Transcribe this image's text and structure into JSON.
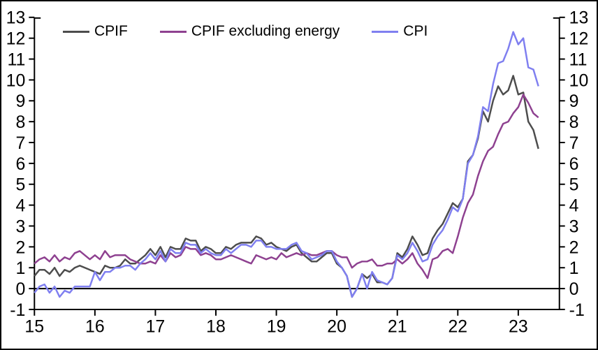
{
  "colors": {
    "background": "#ffffff",
    "axis": "#000000",
    "text": "#000000"
  },
  "chart_data": {
    "type": "line",
    "title": "",
    "xlabel": "",
    "ylabel": "",
    "frequency": "monthly",
    "start_period": "Jan 2015",
    "end_period": "May 2023",
    "xlim": [
      2015,
      2023.68
    ],
    "ylim": [
      -1,
      13
    ],
    "grid": false,
    "zero_line": true,
    "legend_position": "top",
    "ytick_labels": [
      "-1",
      "0",
      "1",
      "2",
      "3",
      "4",
      "5",
      "6",
      "7",
      "8",
      "9",
      "10",
      "11",
      "12",
      "13"
    ],
    "xticks": [
      {
        "value": 2015,
        "label": "15"
      },
      {
        "value": 2016,
        "label": "16"
      },
      {
        "value": 2017,
        "label": "17"
      },
      {
        "value": 2018,
        "label": "18"
      },
      {
        "value": 2019,
        "label": "19"
      },
      {
        "value": 2020,
        "label": "20"
      },
      {
        "value": 2021,
        "label": "21"
      },
      {
        "value": 2022,
        "label": "22"
      },
      {
        "value": 2023,
        "label": "23"
      }
    ],
    "series": [
      {
        "name": "CPIF",
        "color": "#4d4d4d",
        "values": [
          0.6,
          0.9,
          0.9,
          0.7,
          1.0,
          0.6,
          0.9,
          0.8,
          1.0,
          1.1,
          1.0,
          0.9,
          0.8,
          0.7,
          1.1,
          1.0,
          1.0,
          1.1,
          1.4,
          1.2,
          1.2,
          1.4,
          1.6,
          1.9,
          1.6,
          2.0,
          1.5,
          2.0,
          1.9,
          1.9,
          2.4,
          2.3,
          2.3,
          1.8,
          2.0,
          1.9,
          1.7,
          1.7,
          2.0,
          1.9,
          2.1,
          2.2,
          2.2,
          2.2,
          2.5,
          2.4,
          2.1,
          2.2,
          2.0,
          1.9,
          1.8,
          2.0,
          2.1,
          1.7,
          1.5,
          1.3,
          1.3,
          1.5,
          1.7,
          1.7,
          1.2,
          1.0,
          0.6,
          -0.4,
          0.0,
          0.7,
          0.5,
          0.7,
          0.3,
          0.3,
          0.2,
          0.5,
          1.7,
          1.5,
          1.9,
          2.5,
          2.1,
          1.6,
          1.7,
          2.4,
          2.8,
          3.1,
          3.6,
          4.1,
          3.9,
          4.3,
          6.1,
          6.4,
          7.2,
          8.5,
          8.0,
          9.0,
          9.7,
          9.3,
          9.5,
          10.2,
          9.3,
          9.4,
          8.0,
          7.6,
          6.7
        ]
      },
      {
        "name": "CPIF excluding energy",
        "color": "#8e4190",
        "values": [
          1.2,
          1.4,
          1.5,
          1.3,
          1.6,
          1.3,
          1.5,
          1.4,
          1.7,
          1.8,
          1.6,
          1.4,
          1.6,
          1.4,
          1.8,
          1.5,
          1.6,
          1.6,
          1.6,
          1.4,
          1.3,
          1.2,
          1.2,
          1.3,
          1.2,
          1.6,
          1.3,
          1.7,
          1.5,
          1.6,
          2.0,
          1.9,
          1.9,
          1.6,
          1.7,
          1.6,
          1.4,
          1.4,
          1.5,
          1.6,
          1.5,
          1.4,
          1.3,
          1.2,
          1.6,
          1.5,
          1.4,
          1.5,
          1.4,
          1.7,
          1.5,
          1.6,
          1.7,
          1.6,
          1.7,
          1.6,
          1.6,
          1.7,
          1.8,
          1.8,
          1.6,
          1.5,
          1.5,
          1.0,
          1.2,
          1.3,
          1.3,
          1.4,
          1.1,
          1.1,
          1.2,
          1.2,
          1.4,
          1.2,
          1.4,
          1.7,
          1.2,
          0.9,
          0.5,
          1.4,
          1.5,
          1.8,
          1.9,
          1.7,
          2.5,
          3.4,
          4.1,
          4.5,
          5.4,
          6.1,
          6.6,
          6.8,
          7.4,
          7.9,
          8.0,
          8.4,
          8.7,
          9.3,
          8.9,
          8.4,
          8.2
        ]
      },
      {
        "name": "CPI",
        "color": "#7f7ff0",
        "values": [
          -0.2,
          0.1,
          0.2,
          -0.2,
          0.1,
          -0.4,
          -0.1,
          -0.2,
          0.1,
          0.1,
          0.1,
          0.1,
          0.8,
          0.4,
          0.8,
          0.8,
          1.0,
          1.0,
          1.1,
          1.1,
          0.9,
          1.2,
          1.4,
          1.7,
          1.4,
          1.8,
          1.3,
          1.9,
          1.7,
          1.7,
          2.2,
          2.1,
          2.1,
          1.7,
          1.9,
          1.7,
          1.6,
          1.6,
          1.9,
          1.7,
          1.9,
          2.1,
          2.1,
          2.0,
          2.3,
          2.3,
          2.0,
          2.0,
          1.9,
          1.9,
          1.9,
          2.1,
          2.2,
          1.8,
          1.7,
          1.4,
          1.5,
          1.6,
          1.8,
          1.8,
          1.3,
          1.0,
          0.6,
          -0.4,
          0.0,
          0.7,
          0.0,
          0.8,
          0.4,
          0.3,
          0.2,
          0.5,
          1.6,
          1.4,
          1.7,
          2.2,
          1.8,
          1.3,
          1.4,
          2.1,
          2.5,
          2.8,
          3.3,
          3.9,
          3.7,
          4.3,
          6.0,
          6.4,
          7.3,
          8.7,
          8.5,
          9.8,
          10.8,
          10.9,
          11.5,
          12.3,
          11.7,
          12.0,
          10.6,
          10.5,
          9.7
        ]
      }
    ]
  },
  "legend": {
    "items": [
      {
        "label": "CPIF"
      },
      {
        "label": "CPIF excluding energy"
      },
      {
        "label": "CPI"
      }
    ]
  }
}
